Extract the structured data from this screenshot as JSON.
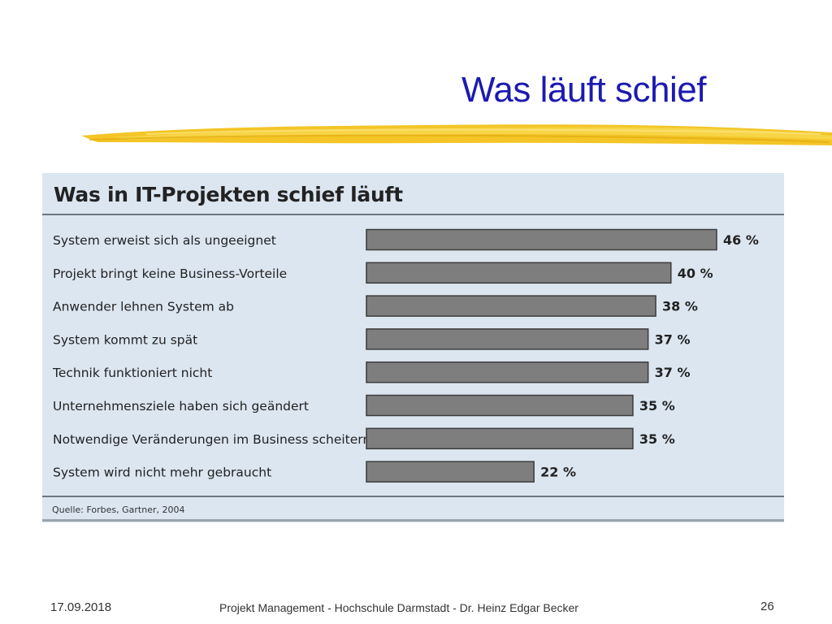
{
  "slide": {
    "title": "Was läuft schief",
    "footer_date": "17.09.2018",
    "footer_center": "Projekt Management - Hochschule Darmstadt - Dr. Heinz Edgar Becker",
    "page_number": "26"
  },
  "colors": {
    "title": "#1c1ab0",
    "brush": "#f2c21b",
    "panel": "#dce6f1",
    "bar": "#7e7e7e"
  },
  "chart_data": {
    "type": "bar",
    "orientation": "horizontal",
    "title": "Was in IT-Projekten schief läuft",
    "categories": [
      "System erweist sich als ungeeignet",
      "Projekt bringt keine Business-Vorteile",
      "Anwender lehnen System ab",
      "System kommt zu spät",
      "Technik funktioniert nicht",
      "Unternehmensziele haben sich geändert",
      "Notwendige Veränderungen im Business scheitern",
      "System wird nicht mehr gebraucht"
    ],
    "values": [
      46,
      40,
      38,
      37,
      37,
      35,
      35,
      22
    ],
    "value_labels": [
      "46 %",
      "40 %",
      "38 %",
      "37 %",
      "37 %",
      "35 %",
      "35 %",
      "22 %"
    ],
    "unit": "%",
    "xlim": [
      0,
      46
    ],
    "source": "Quelle: Forbes, Gartner, 2004"
  }
}
